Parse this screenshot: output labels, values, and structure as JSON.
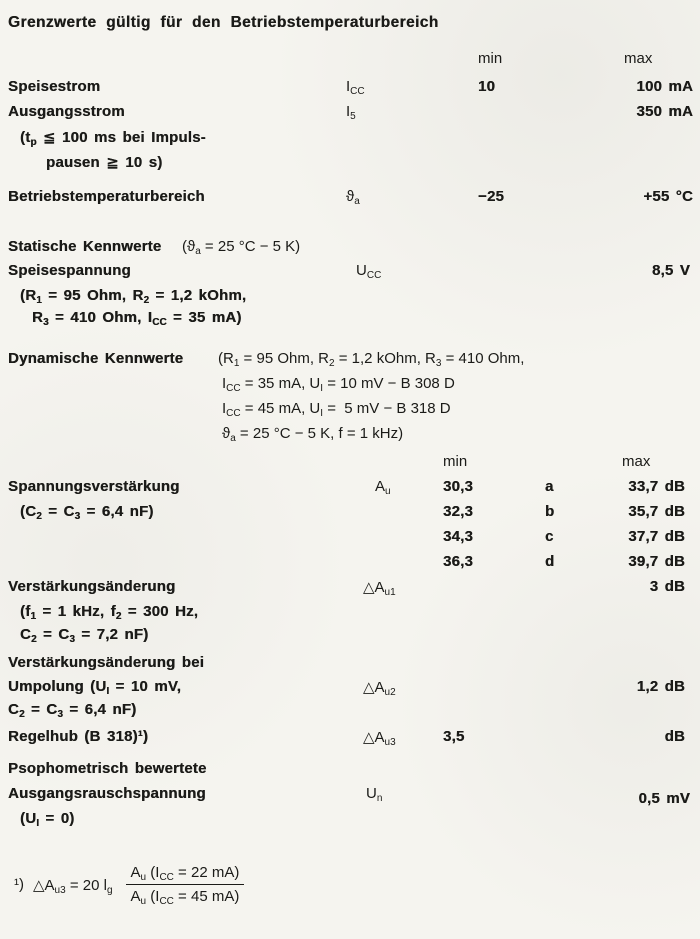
{
  "title": "Grenzwerte gültig für den Betriebstemperaturbereich",
  "headers1": {
    "min": "min",
    "max": "max"
  },
  "limits": {
    "speisestrom": {
      "label": "Speisestrom",
      "symbol": "I~CC~",
      "min": "10",
      "max": "100 mA"
    },
    "ausgangsstrom": {
      "label": "Ausgangsstrom",
      "symbol": "I~5~",
      "max": "350 mA",
      "cond1": "(t~p~ ≦ 100 ms bei Impuls-",
      "cond2": "pausen ≧ 10 s)"
    },
    "betriebstemperatur": {
      "label": "Betriebstemperaturbereich",
      "symbol": "ϑ~a~",
      "min": "−25",
      "max": "+55 °C"
    }
  },
  "statik": {
    "heading": "Statische Kennwerte",
    "heading_cond": "(ϑ~a~ = 25 °C − 5 K)",
    "speisespannung": {
      "label": "Speisespannung",
      "symbol": "U~CC~",
      "max": "8,5 V",
      "cond1": "(R~1~ = 95 Ohm, R~2~ = 1,2 kOhm,",
      "cond2": "R~3~ = 410 Ohm, I~CC~ = 35 mA)"
    }
  },
  "dynamik": {
    "heading": "Dynamische Kennwerte",
    "cond1": "(R~1~ = 95 Ohm, R~2~ = 1,2 kOhm, R~3~ = 410 Ohm,",
    "cond2": "I~CC~ = 35 mA, U~I~ = 10 mV − B 308 D",
    "cond3": "I~CC~ = 45 mA, U~I~ =  5 mV − B 318 D",
    "cond4": "ϑ~a~ = 25 °C − 5 K, f = 1 kHz)",
    "headers2": {
      "min": "min",
      "max": "max"
    },
    "spannungsverstaerkung": {
      "label": "Spannungsverstärkung",
      "cond": "(C~2~ = C~3~ = 6,4 nF)",
      "symbol": "A~u~",
      "variants": [
        {
          "min": "30,3",
          "letter": "a",
          "max": "33,7 dB"
        },
        {
          "min": "32,3",
          "letter": "b",
          "max": "35,7 dB"
        },
        {
          "min": "34,3",
          "letter": "c",
          "max": "37,7 dB"
        },
        {
          "min": "36,3",
          "letter": "d",
          "max": "39,7 dB"
        }
      ]
    },
    "aenderung1": {
      "label": "Verstärkungsänderung",
      "symbol": "△A~u1~",
      "max": "3 dB",
      "cond1": "(f~1~ = 1 kHz, f~2~ = 300 Hz,",
      "cond2": "C~2~ = C~3~ = 7,2 nF)"
    },
    "aenderung2": {
      "label1": "Verstärkungsänderung bei",
      "label2": "Umpolung (U~I~ = 10 mV,",
      "label3": "C~2~ = C~3~ = 6,4 nF)",
      "symbol": "△A~u2~",
      "max": "1,2 dB"
    },
    "regelhub": {
      "label": "Regelhub (B 318)¹)",
      "symbol": "△A~u3~",
      "min": "3,5",
      "max": "dB"
    },
    "rauschen": {
      "label1": "Psophometrisch bewertete",
      "label2": "Ausgangsrauschspannung",
      "label3": "(U~I~ = 0)",
      "symbol": "U~n~",
      "max": "0,5 mV"
    }
  },
  "footnote": {
    "marker": "¹)",
    "lhs": "△A~u3~ = 20 l~g~",
    "num": "A~u~ (I~CC~ = 22 mA)",
    "den": "A~u~ (I~CC~ = 45 mA)"
  }
}
